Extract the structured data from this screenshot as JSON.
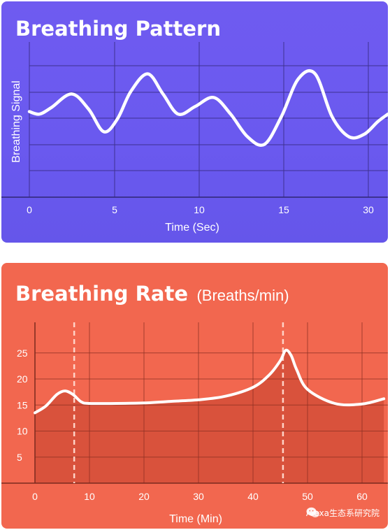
{
  "colors": {
    "pattern_bg": "#6f5bf0",
    "rate_bg": "#f2674f",
    "rate_fill": "#d9523c",
    "line": "#ffffff",
    "grid": "#3a2f7a"
  },
  "chart_data": [
    {
      "type": "line",
      "title": "Breathing Pattern",
      "xlabel": "Time (Sec)",
      "ylabel": "Breathing Signal",
      "xlim": [
        -0.2,
        31.2
      ],
      "ylim": [
        -1,
        1
      ],
      "x_ticks": [
        0,
        5,
        10,
        15,
        30
      ],
      "y_ticks": [],
      "grid": true,
      "series": [
        {
          "x": [
            0,
            0.6,
            1.3,
            2.5,
            3.5,
            4.4,
            5.2,
            6.0,
            7.0,
            7.9,
            8.8,
            9.8,
            10.9,
            11.9,
            12.9,
            13.9,
            14.9,
            15.9,
            16.9,
            17.9,
            18.9,
            19.8,
            20.6,
            21.2
          ],
          "y": [
            0.2,
            0.15,
            0.28,
            0.55,
            0.25,
            -0.2,
            0.05,
            0.6,
            0.95,
            0.55,
            0.15,
            0.3,
            0.48,
            0.15,
            -0.3,
            -0.45,
            0.1,
            0.85,
            0.95,
            0.1,
            -0.3,
            -0.25,
            0.0,
            0.15
          ]
        }
      ]
    },
    {
      "type": "area",
      "title": "Breathing Rate",
      "subtitle": "(Breaths/min)",
      "xlabel": "Time (Min)",
      "ylabel": "",
      "xlim": [
        0,
        64
      ],
      "ylim": [
        0,
        30
      ],
      "x_ticks": [
        0,
        10,
        20,
        30,
        40,
        50,
        60
      ],
      "y_ticks": [
        5,
        10,
        15,
        20,
        25
      ],
      "grid": true,
      "markers": [
        7.2,
        45.5
      ],
      "series": [
        {
          "x": [
            0,
            2,
            4,
            5.5,
            7,
            8.5,
            10,
            15,
            20,
            25,
            30,
            35,
            40,
            43,
            45,
            46,
            47,
            48,
            50,
            55,
            60,
            64
          ],
          "y": [
            13.5,
            14.8,
            17.0,
            17.7,
            17.0,
            15.6,
            15.3,
            15.3,
            15.4,
            15.7,
            16.0,
            16.7,
            18.4,
            20.8,
            23.5,
            25.5,
            24.5,
            21.8,
            18.0,
            15.3,
            15.2,
            16.2
          ]
        }
      ]
    }
  ],
  "watermark": {
    "text": "Alexa生态系研究院",
    "icon": "wechat-icon"
  }
}
